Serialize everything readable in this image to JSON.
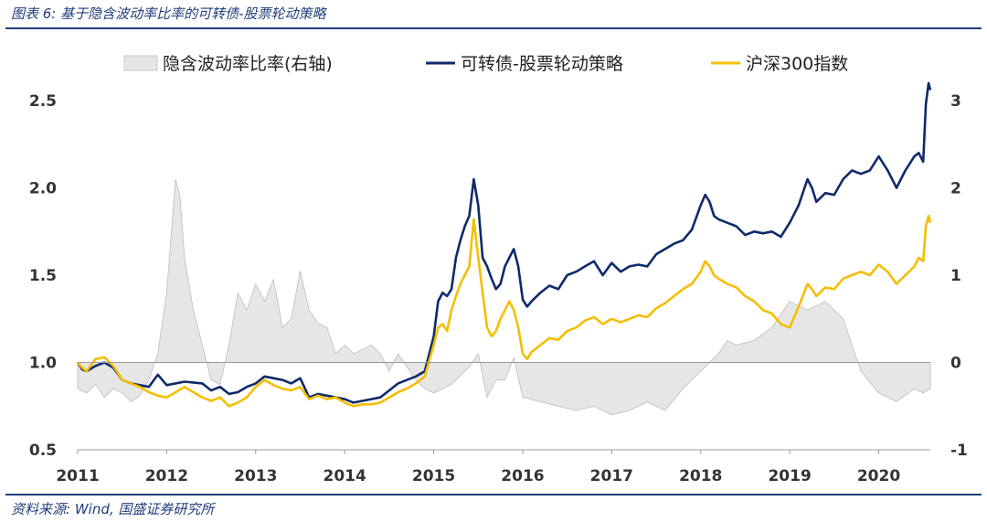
{
  "header": {
    "title": "图表 6:  基于隐含波动率比率的可转债-股票轮动策略"
  },
  "footer": {
    "source": "资料来源:  Wind, 国盛证券研究所"
  },
  "colors": {
    "accent": "#1f3d7a",
    "series1": "#e6e6e6",
    "series2": "#0e2a6b",
    "series3": "#f5be00"
  },
  "chart_data": {
    "type": "line",
    "title": "",
    "legend_position": "top",
    "grid": false,
    "x_ticks": [
      "2011",
      "2012",
      "2013",
      "2014",
      "2015",
      "2016",
      "2017",
      "2018",
      "2019",
      "2020"
    ],
    "x_range": [
      2011.0,
      2020.58
    ],
    "y_left": {
      "ticks": [
        "0.5",
        "1.0",
        "1.5",
        "2.0",
        "2.5"
      ],
      "range": [
        0.5,
        2.5
      ]
    },
    "y_right": {
      "ticks": [
        "-1",
        "0",
        "1",
        "2",
        "3"
      ],
      "range": [
        -1,
        3
      ]
    },
    "series": [
      {
        "name": "隐含波动率比率(右轴)",
        "type": "area",
        "axis": "right",
        "color": "#e6e6e6",
        "x": [
          2011.0,
          2011.1,
          2011.2,
          2011.3,
          2011.4,
          2011.5,
          2011.6,
          2011.7,
          2011.8,
          2011.9,
          2012.0,
          2012.1,
          2012.15,
          2012.2,
          2012.3,
          2012.4,
          2012.5,
          2012.6,
          2012.7,
          2012.8,
          2012.9,
          2013.0,
          2013.1,
          2013.2,
          2013.3,
          2013.4,
          2013.5,
          2013.6,
          2013.7,
          2013.8,
          2013.9,
          2014.0,
          2014.1,
          2014.2,
          2014.3,
          2014.4,
          2014.5,
          2014.6,
          2014.7,
          2014.8,
          2014.9,
          2015.0,
          2015.1,
          2015.2,
          2015.3,
          2015.4,
          2015.5,
          2015.6,
          2015.7,
          2015.8,
          2015.9,
          2016.0,
          2016.2,
          2016.4,
          2016.6,
          2016.8,
          2017.0,
          2017.2,
          2017.4,
          2017.6,
          2017.8,
          2018.0,
          2018.2,
          2018.3,
          2018.4,
          2018.6,
          2018.8,
          2019.0,
          2019.2,
          2019.4,
          2019.6,
          2019.8,
          2020.0,
          2020.2,
          2020.4,
          2020.5,
          2020.58
        ],
        "values": [
          -0.3,
          -0.35,
          -0.25,
          -0.4,
          -0.3,
          -0.35,
          -0.45,
          -0.38,
          -0.2,
          0.1,
          0.8,
          2.1,
          1.9,
          1.2,
          0.6,
          0.2,
          -0.2,
          -0.25,
          0.2,
          0.8,
          0.6,
          0.9,
          0.7,
          0.95,
          0.4,
          0.5,
          1.05,
          0.6,
          0.45,
          0.4,
          0.1,
          0.2,
          0.1,
          0.15,
          0.2,
          0.1,
          -0.1,
          0.1,
          -0.05,
          -0.2,
          -0.3,
          -0.35,
          -0.3,
          -0.25,
          -0.15,
          -0.05,
          0.1,
          -0.4,
          -0.2,
          -0.2,
          0.05,
          -0.4,
          -0.45,
          -0.5,
          -0.55,
          -0.5,
          -0.6,
          -0.55,
          -0.45,
          -0.55,
          -0.3,
          -0.1,
          0.1,
          0.25,
          0.2,
          0.25,
          0.4,
          0.7,
          0.6,
          0.7,
          0.5,
          -0.1,
          -0.35,
          -0.45,
          -0.3,
          -0.35,
          -0.3
        ]
      },
      {
        "name": "可转债-股票轮动策略",
        "type": "line",
        "axis": "left",
        "color": "#0e2a6b",
        "x": [
          2011.0,
          2011.05,
          2011.1,
          2011.2,
          2011.3,
          2011.4,
          2011.5,
          2011.6,
          2011.7,
          2011.8,
          2011.9,
          2012.0,
          2012.2,
          2012.4,
          2012.5,
          2012.6,
          2012.7,
          2012.8,
          2012.9,
          2013.0,
          2013.1,
          2013.2,
          2013.3,
          2013.4,
          2013.5,
          2013.6,
          2013.7,
          2013.8,
          2013.9,
          2014.0,
          2014.1,
          2014.2,
          2014.3,
          2014.4,
          2014.5,
          2014.6,
          2014.7,
          2014.8,
          2014.9,
          2015.0,
          2015.05,
          2015.1,
          2015.15,
          2015.2,
          2015.25,
          2015.3,
          2015.35,
          2015.4,
          2015.45,
          2015.5,
          2015.55,
          2015.6,
          2015.65,
          2015.7,
          2015.75,
          2015.8,
          2015.85,
          2015.9,
          2015.95,
          2016.0,
          2016.05,
          2016.1,
          2016.2,
          2016.3,
          2016.4,
          2016.5,
          2016.6,
          2016.7,
          2016.8,
          2016.9,
          2017.0,
          2017.1,
          2017.2,
          2017.3,
          2017.4,
          2017.5,
          2017.6,
          2017.7,
          2017.8,
          2017.9,
          2018.0,
          2018.05,
          2018.1,
          2018.15,
          2018.2,
          2018.3,
          2018.4,
          2018.5,
          2018.6,
          2018.7,
          2018.8,
          2018.9,
          2019.0,
          2019.1,
          2019.2,
          2019.25,
          2019.3,
          2019.4,
          2019.5,
          2019.6,
          2019.7,
          2019.8,
          2019.9,
          2020.0,
          2020.1,
          2020.2,
          2020.3,
          2020.4,
          2020.45,
          2020.5,
          2020.53,
          2020.56,
          2020.58
        ],
        "values": [
          1.0,
          0.96,
          0.95,
          0.98,
          1.0,
          0.97,
          0.9,
          0.88,
          0.87,
          0.86,
          0.93,
          0.87,
          0.89,
          0.88,
          0.84,
          0.86,
          0.82,
          0.83,
          0.86,
          0.88,
          0.92,
          0.91,
          0.9,
          0.88,
          0.91,
          0.8,
          0.82,
          0.81,
          0.8,
          0.79,
          0.77,
          0.78,
          0.79,
          0.8,
          0.84,
          0.88,
          0.9,
          0.92,
          0.95,
          1.15,
          1.35,
          1.4,
          1.38,
          1.42,
          1.6,
          1.7,
          1.78,
          1.84,
          2.05,
          1.9,
          1.6,
          1.55,
          1.48,
          1.42,
          1.45,
          1.55,
          1.6,
          1.65,
          1.55,
          1.36,
          1.32,
          1.35,
          1.4,
          1.44,
          1.42,
          1.5,
          1.52,
          1.55,
          1.58,
          1.5,
          1.57,
          1.52,
          1.55,
          1.56,
          1.55,
          1.62,
          1.65,
          1.68,
          1.7,
          1.76,
          1.9,
          1.96,
          1.92,
          1.84,
          1.82,
          1.8,
          1.78,
          1.73,
          1.75,
          1.74,
          1.75,
          1.72,
          1.8,
          1.9,
          2.05,
          2.0,
          1.92,
          1.97,
          1.96,
          2.05,
          2.1,
          2.08,
          2.1,
          2.18,
          2.1,
          2.0,
          2.1,
          2.18,
          2.2,
          2.15,
          2.48,
          2.6,
          2.56
        ]
      },
      {
        "name": "沪深300指数",
        "type": "line",
        "axis": "left",
        "color": "#f5be00",
        "x": [
          2011.0,
          2011.05,
          2011.1,
          2011.2,
          2011.3,
          2011.4,
          2011.5,
          2011.6,
          2011.7,
          2011.8,
          2011.9,
          2012.0,
          2012.2,
          2012.4,
          2012.5,
          2012.6,
          2012.7,
          2012.8,
          2012.9,
          2013.0,
          2013.1,
          2013.2,
          2013.3,
          2013.4,
          2013.5,
          2013.6,
          2013.7,
          2013.8,
          2013.9,
          2014.0,
          2014.1,
          2014.2,
          2014.3,
          2014.4,
          2014.5,
          2014.6,
          2014.7,
          2014.8,
          2014.9,
          2015.0,
          2015.05,
          2015.1,
          2015.15,
          2015.2,
          2015.25,
          2015.3,
          2015.35,
          2015.4,
          2015.45,
          2015.5,
          2015.55,
          2015.6,
          2015.65,
          2015.7,
          2015.75,
          2015.8,
          2015.85,
          2015.9,
          2015.95,
          2016.0,
          2016.05,
          2016.1,
          2016.2,
          2016.3,
          2016.4,
          2016.5,
          2016.6,
          2016.7,
          2016.8,
          2016.9,
          2017.0,
          2017.1,
          2017.2,
          2017.3,
          2017.4,
          2017.5,
          2017.6,
          2017.7,
          2017.8,
          2017.9,
          2018.0,
          2018.05,
          2018.1,
          2018.15,
          2018.2,
          2018.3,
          2018.4,
          2018.5,
          2018.6,
          2018.7,
          2018.8,
          2018.9,
          2019.0,
          2019.1,
          2019.2,
          2019.25,
          2019.3,
          2019.4,
          2019.5,
          2019.6,
          2019.7,
          2019.8,
          2019.9,
          2020.0,
          2020.1,
          2020.2,
          2020.3,
          2020.4,
          2020.45,
          2020.5,
          2020.53,
          2020.56,
          2020.58
        ],
        "values": [
          1.0,
          0.97,
          0.95,
          1.02,
          1.03,
          0.98,
          0.9,
          0.88,
          0.86,
          0.83,
          0.81,
          0.8,
          0.86,
          0.8,
          0.78,
          0.8,
          0.75,
          0.77,
          0.8,
          0.86,
          0.9,
          0.87,
          0.85,
          0.84,
          0.86,
          0.79,
          0.81,
          0.79,
          0.8,
          0.77,
          0.75,
          0.76,
          0.76,
          0.77,
          0.8,
          0.83,
          0.85,
          0.88,
          0.92,
          1.1,
          1.2,
          1.22,
          1.18,
          1.3,
          1.38,
          1.45,
          1.5,
          1.55,
          1.82,
          1.6,
          1.4,
          1.2,
          1.15,
          1.18,
          1.25,
          1.3,
          1.35,
          1.3,
          1.2,
          1.05,
          1.02,
          1.06,
          1.1,
          1.14,
          1.13,
          1.18,
          1.2,
          1.24,
          1.26,
          1.22,
          1.25,
          1.23,
          1.25,
          1.27,
          1.26,
          1.31,
          1.34,
          1.38,
          1.42,
          1.45,
          1.52,
          1.58,
          1.55,
          1.5,
          1.48,
          1.45,
          1.43,
          1.38,
          1.35,
          1.3,
          1.28,
          1.22,
          1.2,
          1.32,
          1.45,
          1.42,
          1.38,
          1.43,
          1.42,
          1.48,
          1.5,
          1.52,
          1.5,
          1.56,
          1.52,
          1.45,
          1.5,
          1.55,
          1.6,
          1.58,
          1.78,
          1.84,
          1.8
        ]
      }
    ]
  }
}
